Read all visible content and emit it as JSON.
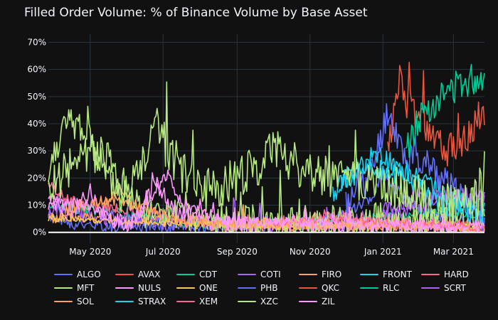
{
  "chart_data": {
    "type": "line",
    "title": "Filled Order Volume: % of Binance Volume by Base Asset",
    "xlabel": "",
    "ylabel": "",
    "x_range": [
      "2020-03-27",
      "2021-03-27"
    ],
    "ylim": [
      -4,
      73
    ],
    "y_ticks": [
      0,
      10,
      20,
      30,
      40,
      50,
      60,
      70
    ],
    "y_tick_labels": [
      "0%",
      "10%",
      "20%",
      "30%",
      "40%",
      "50%",
      "60%",
      "70%"
    ],
    "x_ticks": [
      "2020-05-01",
      "2020-07-01",
      "2020-09-01",
      "2020-11-01",
      "2021-01-01",
      "2021-03-01"
    ],
    "x_tick_labels": [
      "May 2020",
      "Jul 2020",
      "Sep 2020",
      "Nov 2020",
      "Jan 2021",
      "Mar 2021"
    ],
    "background": "#111111",
    "series": [
      {
        "name": "ALGO",
        "color": "#636efa",
        "start": "2020-03-27",
        "end": "2021-03-27",
        "anchors": [
          [
            0,
            6
          ],
          [
            20,
            3
          ],
          [
            60,
            2
          ],
          [
            120,
            2
          ],
          [
            200,
            3
          ],
          [
            240,
            5
          ],
          [
            270,
            12
          ],
          [
            280,
            22
          ],
          [
            295,
            14
          ],
          [
            310,
            8
          ],
          [
            330,
            5
          ],
          [
            365,
            3
          ]
        ],
        "noise": 2,
        "seed": 1
      },
      {
        "name": "AVAX",
        "color": "#ef553b",
        "start": "2020-09-22",
        "end": "2021-03-27",
        "anchors": [
          [
            0,
            3
          ],
          [
            40,
            2
          ],
          [
            100,
            2
          ],
          [
            130,
            3
          ],
          [
            160,
            3
          ],
          [
            181,
            3
          ]
        ],
        "noise": 1,
        "seed": 2
      },
      {
        "name": "CDT",
        "color": "#00cc96",
        "start": "2020-03-27",
        "end": "2021-03-27",
        "anchors": [
          [
            0,
            10
          ],
          [
            40,
            8
          ],
          [
            80,
            6
          ],
          [
            130,
            3
          ],
          [
            200,
            3
          ],
          [
            250,
            4
          ],
          [
            290,
            6
          ],
          [
            330,
            7
          ],
          [
            365,
            7
          ]
        ],
        "noise": 2,
        "seed": 3
      },
      {
        "name": "COTI",
        "color": "#ab63fa",
        "start": "2020-03-27",
        "end": "2021-03-27",
        "anchors": [
          [
            0,
            8
          ],
          [
            60,
            5
          ],
          [
            120,
            3
          ],
          [
            200,
            3
          ],
          [
            260,
            4
          ],
          [
            300,
            8
          ],
          [
            330,
            12
          ],
          [
            365,
            14
          ]
        ],
        "noise": 3,
        "seed": 4
      },
      {
        "name": "FIRO",
        "color": "#ffa15a",
        "start": "2020-03-27",
        "end": "2021-03-27",
        "anchors": [
          [
            0,
            5
          ],
          [
            40,
            6
          ],
          [
            60,
            17
          ],
          [
            80,
            5
          ],
          [
            150,
            2
          ],
          [
            250,
            2
          ],
          [
            300,
            2
          ],
          [
            365,
            1
          ]
        ],
        "noise": 2,
        "seed": 5
      },
      {
        "name": "FRONT",
        "color": "#19d3f3",
        "start": "2020-11-20",
        "end": "2021-03-27",
        "anchors": [
          [
            0,
            15
          ],
          [
            20,
            22
          ],
          [
            40,
            28
          ],
          [
            60,
            22
          ],
          [
            80,
            18
          ],
          [
            100,
            12
          ],
          [
            127,
            8
          ]
        ],
        "noise": 4,
        "seed": 6
      },
      {
        "name": "HARD",
        "color": "#ff6692",
        "start": "2020-03-27",
        "end": "2021-03-27",
        "anchors": [
          [
            0,
            18
          ],
          [
            15,
            12
          ],
          [
            40,
            10
          ],
          [
            80,
            8
          ],
          [
            120,
            4
          ],
          [
            180,
            3
          ],
          [
            240,
            6
          ],
          [
            280,
            5
          ],
          [
            330,
            2
          ],
          [
            365,
            1
          ]
        ],
        "noise": 2,
        "seed": 7
      },
      {
        "name": "MFT",
        "color": "#b6e880",
        "start": "2020-03-27",
        "end": "2021-03-27",
        "anchors": [
          [
            0,
            20
          ],
          [
            10,
            38
          ],
          [
            25,
            40
          ],
          [
            40,
            30
          ],
          [
            50,
            18
          ],
          [
            65,
            15
          ],
          [
            80,
            8
          ],
          [
            120,
            4
          ],
          [
            200,
            3
          ],
          [
            280,
            4
          ],
          [
            365,
            2
          ]
        ],
        "noise": 7,
        "seed": 8
      },
      {
        "name": "NULS",
        "color": "#ff97ff",
        "start": "2020-03-27",
        "end": "2021-03-27",
        "anchors": [
          [
            0,
            10
          ],
          [
            20,
            8
          ],
          [
            35,
            15
          ],
          [
            50,
            5
          ],
          [
            70,
            3
          ],
          [
            90,
            18
          ],
          [
            105,
            8
          ],
          [
            140,
            3
          ],
          [
            220,
            3
          ],
          [
            365,
            2
          ]
        ],
        "noise": 3,
        "seed": 9
      },
      {
        "name": "ONE",
        "color": "#fecb52",
        "start": "2020-03-27",
        "end": "2021-03-27",
        "anchors": [
          [
            0,
            5
          ],
          [
            60,
            4
          ],
          [
            120,
            3
          ],
          [
            200,
            2
          ],
          [
            280,
            3
          ],
          [
            365,
            2
          ]
        ],
        "noise": 1,
        "seed": 10
      },
      {
        "name": "PHB",
        "color": "#636efa",
        "start": "2020-12-01",
        "end": "2021-03-27",
        "anchors": [
          [
            0,
            10
          ],
          [
            20,
            20
          ],
          [
            35,
            45
          ],
          [
            50,
            28
          ],
          [
            70,
            25
          ],
          [
            90,
            15
          ],
          [
            116,
            6
          ]
        ],
        "noise": 6,
        "seed": 11
      },
      {
        "name": "QKC",
        "color": "#ef553b",
        "start": "2021-01-05",
        "end": "2021-03-27",
        "anchors": [
          [
            0,
            30
          ],
          [
            10,
            55
          ],
          [
            20,
            45
          ],
          [
            35,
            38
          ],
          [
            50,
            30
          ],
          [
            65,
            35
          ],
          [
            82,
            45
          ]
        ],
        "noise": 7,
        "seed": 12
      },
      {
        "name": "RLC",
        "color": "#00cc96",
        "start": "2021-01-20",
        "end": "2021-03-27",
        "anchors": [
          [
            0,
            30
          ],
          [
            15,
            45
          ],
          [
            30,
            50
          ],
          [
            45,
            55
          ],
          [
            67,
            58
          ]
        ],
        "noise": 6,
        "seed": 13
      },
      {
        "name": "SCRT",
        "color": "#ab63fa",
        "start": "2021-01-01",
        "end": "2021-03-27",
        "anchors": [
          [
            0,
            8
          ],
          [
            30,
            12
          ],
          [
            60,
            15
          ],
          [
            85,
            12
          ]
        ],
        "noise": 3,
        "seed": 14
      },
      {
        "name": "SOL",
        "color": "#ffa15a",
        "start": "2020-04-10",
        "end": "2021-03-27",
        "anchors": [
          [
            0,
            8
          ],
          [
            40,
            12
          ],
          [
            60,
            10
          ],
          [
            100,
            4
          ],
          [
            200,
            3
          ],
          [
            351,
            2
          ]
        ],
        "noise": 2,
        "seed": 15
      },
      {
        "name": "STRAX",
        "color": "#19d3f3",
        "start": "2020-11-25",
        "end": "2021-03-27",
        "anchors": [
          [
            0,
            18
          ],
          [
            20,
            25
          ],
          [
            40,
            22
          ],
          [
            60,
            20
          ],
          [
            80,
            12
          ],
          [
            100,
            8
          ],
          [
            122,
            5
          ]
        ],
        "noise": 4,
        "seed": 16
      },
      {
        "name": "XEM",
        "color": "#ff6692",
        "start": "2020-10-01",
        "end": "2021-03-27",
        "anchors": [
          [
            0,
            3
          ],
          [
            40,
            5
          ],
          [
            80,
            4
          ],
          [
            120,
            3
          ],
          [
            177,
            2
          ]
        ],
        "noise": 1.5,
        "seed": 17
      },
      {
        "name": "XZC",
        "color": "#b6e880",
        "start": "2020-03-27",
        "end": "2021-03-27",
        "anchors": [
          [
            0,
            15
          ],
          [
            20,
            25
          ],
          [
            45,
            30
          ],
          [
            60,
            15
          ],
          [
            75,
            20
          ],
          [
            90,
            40
          ],
          [
            105,
            25
          ],
          [
            130,
            15
          ],
          [
            160,
            20
          ],
          [
            190,
            30
          ],
          [
            220,
            22
          ],
          [
            250,
            18
          ],
          [
            270,
            20
          ],
          [
            300,
            15
          ],
          [
            330,
            10
          ],
          [
            365,
            12
          ]
        ],
        "noise": 8,
        "seed": 18
      },
      {
        "name": "ZIL",
        "color": "#ff97ff",
        "start": "2020-03-27",
        "end": "2021-03-27",
        "anchors": [
          [
            0,
            12
          ],
          [
            30,
            10
          ],
          [
            55,
            4
          ],
          [
            70,
            3
          ],
          [
            100,
            22
          ],
          [
            110,
            10
          ],
          [
            150,
            4
          ],
          [
            250,
            3
          ],
          [
            365,
            2
          ]
        ],
        "noise": 2,
        "seed": 19
      }
    ]
  }
}
